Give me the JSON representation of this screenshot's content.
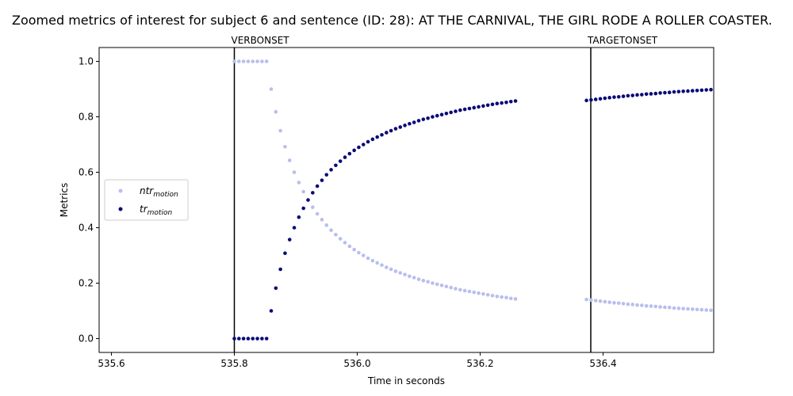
{
  "chart_data": {
    "type": "scatter",
    "title": "Zoomed metrics of interest for subject 6 and sentence (ID: 28): AT THE CARNIVAL, THE GIRL RODE A ROLLER COASTER.",
    "xlabel": "Time in seconds",
    "ylabel": "Metrics",
    "xlim": [
      535.58,
      536.58
    ],
    "ylim": [
      -0.05,
      1.05
    ],
    "xticks": [
      535.6,
      535.8,
      536.0,
      536.2,
      536.4
    ],
    "xtick_labels": [
      "535.6",
      "535.8",
      "536.0",
      "536.2",
      "536.4"
    ],
    "yticks": [
      0.0,
      0.2,
      0.4,
      0.6,
      0.8,
      1.0
    ],
    "ytick_labels": [
      "0.0",
      "0.2",
      "0.4",
      "0.6",
      "0.8",
      "1.0"
    ],
    "vertical_lines": [
      {
        "x": 535.8,
        "label": "VERBONSET",
        "color": "#000000"
      },
      {
        "x": 536.38,
        "label": "TARGETONSET",
        "color": "#000000"
      }
    ],
    "legend": {
      "placement": "center-left"
    },
    "series": [
      {
        "name": "ntr",
        "name_sub": "motion",
        "color": "#b7bfec",
        "segments": [
          {
            "x_start": 535.8,
            "x_step": 0.0075,
            "values": [
              1.0,
              1.0,
              1.0,
              1.0,
              1.0,
              1.0,
              1.0,
              1.0,
              0.9,
              0.818,
              0.75,
              0.692,
              0.643,
              0.6,
              0.563,
              0.53,
              0.5,
              0.474,
              0.45,
              0.429,
              0.409,
              0.391,
              0.375,
              0.36,
              0.346,
              0.333,
              0.321,
              0.31,
              0.3,
              0.29,
              0.281,
              0.273,
              0.265,
              0.257,
              0.25,
              0.243,
              0.237,
              0.231,
              0.225,
              0.22,
              0.214,
              0.209,
              0.205,
              0.2,
              0.196,
              0.192,
              0.188,
              0.184,
              0.18,
              0.176,
              0.173,
              0.17,
              0.167,
              0.164,
              0.161,
              0.158,
              0.155,
              0.152,
              0.15,
              0.148,
              0.145,
              0.143
            ]
          },
          {
            "x_start": 536.373,
            "x_step": 0.0075,
            "values": [
              0.141,
              0.139,
              0.137,
              0.135,
              0.133,
              0.131,
              0.129,
              0.128,
              0.126,
              0.124,
              0.123,
              0.121,
              0.12,
              0.118,
              0.117,
              0.116,
              0.114,
              0.113,
              0.112,
              0.11,
              0.109,
              0.108,
              0.107,
              0.106,
              0.105,
              0.104,
              0.103,
              0.102,
              0.101,
              0.1,
              0.099,
              0.098,
              0.097,
              0.096,
              0.095,
              0.094
            ]
          }
        ]
      },
      {
        "name": "tr",
        "name_sub": "motion",
        "color": "#0a0a78",
        "segments": [
          {
            "x_start": 535.8,
            "x_step": 0.0075,
            "values": [
              0.0,
              0.0,
              0.0,
              0.0,
              0.0,
              0.0,
              0.0,
              0.0,
              0.1,
              0.182,
              0.25,
              0.308,
              0.357,
              0.4,
              0.438,
              0.47,
              0.5,
              0.526,
              0.55,
              0.571,
              0.591,
              0.609,
              0.625,
              0.64,
              0.654,
              0.667,
              0.679,
              0.69,
              0.7,
              0.71,
              0.719,
              0.727,
              0.735,
              0.743,
              0.75,
              0.757,
              0.763,
              0.769,
              0.775,
              0.78,
              0.786,
              0.791,
              0.795,
              0.8,
              0.804,
              0.808,
              0.812,
              0.816,
              0.82,
              0.824,
              0.827,
              0.83,
              0.833,
              0.836,
              0.839,
              0.842,
              0.845,
              0.848,
              0.85,
              0.852,
              0.855,
              0.857
            ]
          },
          {
            "x_start": 536.373,
            "x_step": 0.0075,
            "values": [
              0.859,
              0.861,
              0.863,
              0.865,
              0.867,
              0.869,
              0.871,
              0.872,
              0.874,
              0.876,
              0.877,
              0.879,
              0.88,
              0.882,
              0.883,
              0.884,
              0.886,
              0.887,
              0.888,
              0.89,
              0.891,
              0.892,
              0.893,
              0.894,
              0.895,
              0.896,
              0.897,
              0.898,
              0.899,
              0.9,
              0.901,
              0.902,
              0.903,
              0.904,
              0.905,
              0.906
            ]
          }
        ]
      }
    ]
  }
}
